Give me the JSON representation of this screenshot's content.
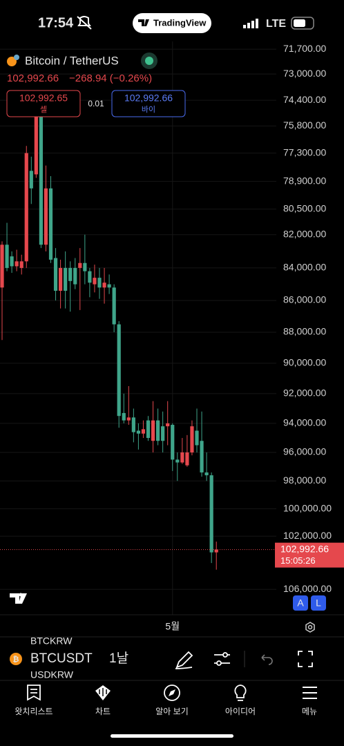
{
  "status_bar": {
    "time": "17:54",
    "logo": "TradingView",
    "network": "LTE"
  },
  "header": {
    "symbol": "Bitcoin / TetherUS",
    "price": "102,992.66",
    "change": "−268.94 (−0.26%)"
  },
  "trade": {
    "sell_price": "102,992.65",
    "sell_label": "셀",
    "qty": "0.01",
    "buy_price": "102,992.66",
    "buy_label": "바이"
  },
  "chart_data": {
    "type": "candlestick",
    "categories": [
      null,
      null,
      null,
      null,
      null,
      null,
      null,
      null,
      null,
      null,
      null,
      null,
      null,
      null,
      null,
      null,
      null,
      null,
      null,
      null,
      null,
      null,
      null,
      null,
      null,
      null,
      null,
      null,
      null,
      null,
      null,
      null,
      null,
      null,
      null,
      "5월",
      null,
      null,
      null,
      null,
      null,
      null,
      null,
      null,
      null
    ],
    "open": [
      85200,
      82600,
      83300,
      83900,
      84000,
      83600,
      78300,
      78500,
      75300,
      82600,
      79300,
      83400,
      85400,
      84000,
      84000,
      84000,
      84000,
      83700,
      84200,
      85000,
      84600,
      85200,
      85000,
      85200,
      87500,
      93300,
      93800,
      93600,
      94500,
      94700,
      93800,
      95200,
      93800,
      94200,
      94200,
      94100,
      96500,
      96700,
      96900,
      96000,
      94500,
      95200,
      97400,
      97600,
      103200
    ],
    "high": [
      88500,
      84200,
      84300,
      84200,
      84400,
      84000,
      80200,
      78700,
      82800,
      83000,
      83700,
      86000,
      86500,
      86500,
      86700,
      85300,
      86600,
      85000,
      85800,
      85500,
      85900,
      86200,
      85600,
      88000,
      94300,
      94000,
      94100,
      95300,
      95800,
      95000,
      95200,
      96000,
      95500,
      96000,
      95500,
      97300,
      98000,
      96800,
      97000,
      96200,
      96000,
      97700,
      98000,
      104000,
      104500
    ],
    "low": [
      82400,
      81300,
      83000,
      82900,
      83200,
      76900,
      77500,
      74000,
      74000,
      78000,
      78600,
      82800,
      83500,
      83000,
      83600,
      83400,
      82800,
      82000,
      84000,
      83800,
      84000,
      84000,
      84400,
      85000,
      87300,
      92000,
      91500,
      93000,
      94000,
      93800,
      93500,
      92500,
      93000,
      93200,
      92500,
      94000,
      96000,
      95000,
      94800,
      93800,
      93000,
      93200,
      96000,
      97400,
      102400
    ],
    "close": [
      82600,
      84000,
      83900,
      83600,
      83600,
      77300,
      79300,
      75300,
      82600,
      79300,
      83500,
      85400,
      84000,
      85400,
      84800,
      85000,
      83700,
      84200,
      84900,
      84600,
      85200,
      84900,
      85200,
      87500,
      93500,
      93800,
      93600,
      94600,
      94700,
      94400,
      95000,
      93800,
      95200,
      95200,
      94000,
      96500,
      96700,
      96000,
      96000,
      94200,
      95500,
      97400,
      97600,
      103200,
      102992.66
    ],
    "up_color": "#3fa58a",
    "down_color": "#e5484d",
    "ylim": [
      71300,
      107000
    ],
    "log": true,
    "inverted": true,
    "yticks": [
      {
        "value": 71700,
        "label": "71,700.00"
      },
      {
        "value": 73000,
        "label": "73,000.00"
      },
      {
        "value": 74400,
        "label": "74,400.00"
      },
      {
        "value": 75800,
        "label": "75,800.00"
      },
      {
        "value": 77300,
        "label": "77,300.00"
      },
      {
        "value": 78900,
        "label": "78,900.00"
      },
      {
        "value": 80500,
        "label": "80,500.00"
      },
      {
        "value": 82000,
        "label": "82,000.00"
      },
      {
        "value": 84000,
        "label": "84,000.00"
      },
      {
        "value": 86000,
        "label": "86,000.00"
      },
      {
        "value": 88000,
        "label": "88,000.00"
      },
      {
        "value": 90000,
        "label": "90,000.00"
      },
      {
        "value": 92000,
        "label": "92,000.00"
      },
      {
        "value": 94000,
        "label": "94,000.00"
      },
      {
        "value": 96000,
        "label": "96,000.00"
      },
      {
        "value": 98000,
        "label": "98,000.00"
      },
      {
        "value": 100000,
        "label": "100,000.00"
      },
      {
        "value": 102000,
        "label": "102,000.00"
      },
      {
        "value": 106000,
        "label": "106,000.00"
      }
    ],
    "grid": true,
    "last_price_label": "102,992.66",
    "countdown": "15:05:26"
  },
  "chart_buttons": [
    "A",
    "L"
  ],
  "toolbar": {
    "symbol": "BTCUSDT",
    "interval": "1날",
    "ghost_above": "BTCKRW",
    "ghost_below": "USDKRW"
  },
  "nav": [
    "왓치리스트",
    "차트",
    "알아 보기",
    "아이디어",
    "메뉴"
  ]
}
